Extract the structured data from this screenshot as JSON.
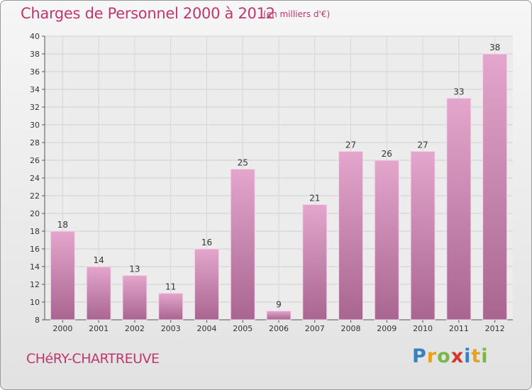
{
  "title": "Charges de Personnel 2000 à 2012",
  "subtitle": "(en milliers d'€)",
  "commune": "CHéRY-CHARTREUVE",
  "logo": {
    "text": "Proxiti",
    "letters": [
      {
        "ch": "P",
        "color": "#3a7fc1"
      },
      {
        "ch": "r",
        "color": "#e8a020"
      },
      {
        "ch": "o",
        "color": "#7ab648"
      },
      {
        "ch": "x",
        "color": "#d8352a"
      },
      {
        "ch": "i",
        "color": "#3a7fc1"
      },
      {
        "ch": "t",
        "color": "#e8a020"
      },
      {
        "ch": "i",
        "color": "#7ab648"
      }
    ]
  },
  "colors": {
    "accent": "#c0366e",
    "bar_top": "#e4a6cd",
    "bar_bottom": "#a86590",
    "bar_edge": "#f3d4e7"
  },
  "chart_data": {
    "type": "bar",
    "title": "Charges de Personnel 2000 à 2012",
    "subtitle": "(en milliers d'€)",
    "categories": [
      "2000",
      "2001",
      "2002",
      "2003",
      "2004",
      "2005",
      "2006",
      "2007",
      "2008",
      "2009",
      "2010",
      "2011",
      "2012"
    ],
    "values": [
      18,
      14,
      13,
      11,
      16,
      25,
      9,
      21,
      27,
      26,
      27,
      33,
      38
    ],
    "ylim": [
      8,
      40
    ],
    "yticks": [
      8,
      10,
      12,
      14,
      16,
      18,
      20,
      22,
      24,
      26,
      28,
      30,
      32,
      34,
      36,
      38,
      40
    ],
    "grid": true,
    "data_labels": true
  }
}
